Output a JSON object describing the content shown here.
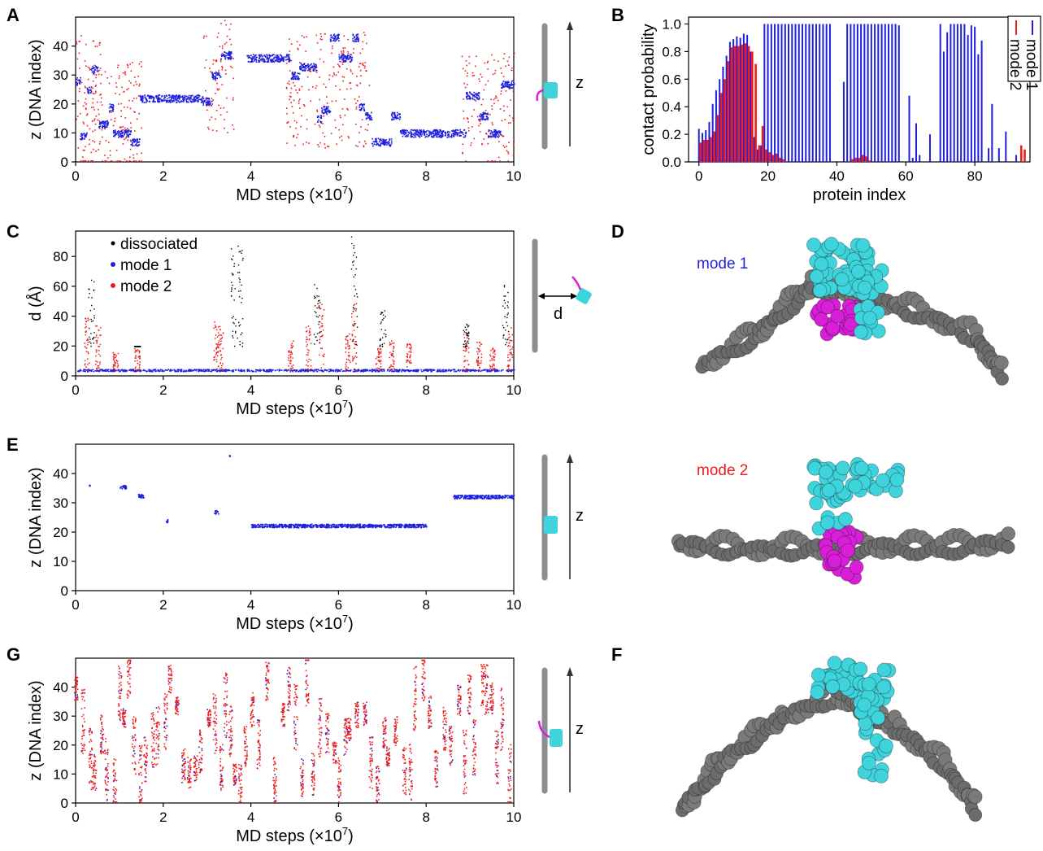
{
  "figure": {
    "panel_labels": {
      "a": "A",
      "b": "B",
      "c": "C",
      "d": "D",
      "e": "E",
      "f": "F",
      "g": "G"
    },
    "colors": {
      "mode1": "#1f1fdc",
      "mode2": "#ee1c1c",
      "dissociated": "#000000",
      "dna": "#7a7a7a",
      "protein": "#3fd3dc",
      "tail": "#d81fd8"
    },
    "schematic_labels": {
      "z": "z",
      "d": "d"
    },
    "structure_labels": {
      "mode1": "mode 1",
      "mode2": "mode 2"
    }
  },
  "chart_data": [
    {
      "id": "A",
      "type": "scatter",
      "xlabel": "MD steps (×10",
      "xlabel_exp": "7",
      "xlabel_end": ")",
      "ylabel": "z (DNA index)",
      "xlim": [
        0,
        10
      ],
      "ylim": [
        0,
        50
      ],
      "xticks": [
        "0",
        "2",
        "4",
        "6",
        "8",
        "10"
      ],
      "yticks": [
        "0",
        "10",
        "20",
        "30",
        "40"
      ],
      "series": [
        {
          "key": "mode1",
          "segments": [
            [
              0,
              0.1,
              28
            ],
            [
              0.1,
              0.25,
              9
            ],
            [
              0.25,
              0.35,
              25
            ],
            [
              0.35,
              0.5,
              32
            ],
            [
              0.5,
              0.75,
              13
            ],
            [
              0.75,
              0.85,
              19
            ],
            [
              0.85,
              1.25,
              10
            ],
            [
              1.25,
              1.45,
              7
            ],
            [
              1.45,
              2.9,
              22
            ],
            [
              2.9,
              3.1,
              21
            ],
            [
              3.1,
              3.3,
              30
            ],
            [
              3.3,
              3.55,
              37
            ],
            [
              3.9,
              4.9,
              36
            ],
            [
              4.9,
              5.1,
              30
            ],
            [
              5.1,
              5.5,
              33
            ],
            [
              5.5,
              5.6,
              15
            ],
            [
              5.6,
              5.8,
              18
            ],
            [
              5.8,
              6.0,
              43
            ],
            [
              6.0,
              6.3,
              36
            ],
            [
              6.3,
              6.45,
              43
            ],
            [
              6.45,
              6.6,
              19
            ],
            [
              6.6,
              6.75,
              16
            ],
            [
              6.75,
              7.2,
              7
            ],
            [
              7.2,
              7.4,
              16
            ],
            [
              7.4,
              8.9,
              10
            ],
            [
              8.9,
              9.2,
              23
            ],
            [
              9.2,
              9.4,
              16
            ],
            [
              9.4,
              9.7,
              10
            ],
            [
              9.7,
              10,
              27
            ]
          ]
        },
        {
          "key": "mode2",
          "segments": [
            [
              0,
              0.6,
              25
            ],
            [
              0.1,
              1.5,
              15
            ],
            [
              2.9,
              3.6,
              30
            ],
            [
              4.8,
              6.7,
              25
            ],
            [
              8.8,
              10,
              18
            ]
          ]
        }
      ]
    },
    {
      "id": "B",
      "type": "bar",
      "xlabel": "protein index",
      "ylabel": "contact probability",
      "xlim": [
        -3,
        96
      ],
      "ylim": [
        0,
        1.05
      ],
      "xticks": [
        "0",
        "20",
        "40",
        "60",
        "80"
      ],
      "yticks": [
        "0.0",
        "0.2",
        "0.4",
        "0.6",
        "0.8",
        "1.0"
      ],
      "series": [
        {
          "name": "mode 1",
          "key": "mode1",
          "values": [
            0.24,
            0.21,
            0.23,
            0.29,
            0.42,
            0.52,
            0.6,
            0.69,
            0.77,
            0.87,
            0.89,
            0.91,
            0.9,
            0.93,
            0.92,
            0.8,
            0.18,
            0.09,
            0.12,
            1.0,
            1.0,
            1.0,
            1.0,
            1.0,
            1.0,
            1.0,
            1.0,
            1.0,
            1.0,
            1.0,
            1.0,
            1.0,
            1.0,
            1.0,
            1.0,
            1.0,
            1.0,
            1.0,
            1.0,
            0.0,
            0.0,
            0.0,
            0.58,
            1.0,
            1.0,
            1.0,
            1.0,
            1.0,
            1.0,
            1.0,
            1.0,
            1.0,
            1.0,
            1.0,
            1.0,
            1.0,
            1.0,
            1.0,
            0.99,
            0.0,
            0.0,
            0.48,
            0.03,
            0.28,
            0.05,
            0.0,
            0.0,
            0.2,
            0.0,
            0.0,
            1.0,
            0.8,
            0.94,
            1.0,
            1.0,
            1.0,
            1.0,
            1.0,
            0.92,
            0.99,
            0.98,
            0.78,
            0.88,
            0.0,
            0.1,
            0.42,
            0.0,
            0.1,
            0.0,
            0.22,
            0.0,
            0.0,
            0.05,
            0.0,
            0.0
          ]
        },
        {
          "name": "mode 2",
          "key": "mode2",
          "values": [
            0.14,
            0.16,
            0.16,
            0.18,
            0.22,
            0.34,
            0.5,
            0.6,
            0.73,
            0.83,
            0.84,
            0.84,
            0.85,
            0.86,
            0.84,
            0.8,
            0.71,
            0.12,
            0.26,
            0.09,
            0.07,
            0.05,
            0.06,
            0.03,
            0.02,
            0.0,
            0.0,
            0.0,
            0.0,
            0.0,
            0.0,
            0.0,
            0.0,
            0.0,
            0.0,
            0.0,
            0.0,
            0.0,
            0.0,
            0.0,
            0.0,
            0.0,
            0.0,
            0.0,
            0.02,
            0.03,
            0.03,
            0.05,
            0.04,
            0.01,
            0.0,
            0.0,
            0.0,
            0.0,
            0.0,
            0.0,
            0.0,
            0.0,
            0.0,
            0.0,
            0.0,
            0.0,
            0.0,
            0.0,
            0.0,
            0.0,
            0.0,
            0.0,
            0.0,
            0.0,
            0.0,
            0.0,
            0.0,
            0.0,
            0.0,
            0.0,
            0.0,
            0.0,
            0.0,
            0.0,
            0.0,
            0.0,
            0.0,
            0.0,
            0.0,
            0.0,
            0.0,
            0.0,
            0.0,
            0.0,
            0.0,
            0.0,
            0.0,
            0.12,
            0.09
          ]
        }
      ]
    },
    {
      "id": "C",
      "type": "scatter",
      "xlabel": "MD steps (×10",
      "xlabel_exp": "7",
      "xlabel_end": ")",
      "ylabel": "d (Å)",
      "xlim": [
        0,
        10
      ],
      "ylim": [
        0,
        97
      ],
      "xticks": [
        "0",
        "2",
        "4",
        "6",
        "8",
        "10"
      ],
      "yticks": [
        "0",
        "20",
        "40",
        "60",
        "80"
      ],
      "series": [
        {
          "name": "dissociated",
          "key": "dissociated",
          "spikes": [
            [
              0.35,
              65
            ],
            [
              3.6,
              92
            ],
            [
              3.75,
              88
            ],
            [
              5.5,
              63
            ],
            [
              6.35,
              96
            ],
            [
              7.0,
              45
            ],
            [
              9.8,
              65
            ],
            [
              1.4,
              20
            ],
            [
              8.9,
              35
            ]
          ]
        },
        {
          "name": "mode 1",
          "key": "mode1",
          "baseline": 4
        },
        {
          "name": "mode 2",
          "key": "mode2",
          "spikes": [
            [
              0.25,
              35
            ],
            [
              0.5,
              30
            ],
            [
              0.9,
              12
            ],
            [
              1.4,
              15
            ],
            [
              3.2,
              35
            ],
            [
              3.3,
              30
            ],
            [
              4.9,
              20
            ],
            [
              5.3,
              30
            ],
            [
              5.6,
              45
            ],
            [
              6.2,
              25
            ],
            [
              6.35,
              45
            ],
            [
              6.9,
              15
            ],
            [
              7.2,
              20
            ],
            [
              7.6,
              18
            ],
            [
              8.9,
              25
            ],
            [
              9.2,
              20
            ],
            [
              9.5,
              15
            ],
            [
              9.9,
              30
            ]
          ]
        }
      ]
    },
    {
      "id": "E",
      "type": "scatter",
      "xlabel": "MD steps (×10",
      "xlabel_exp": "7",
      "xlabel_end": ")",
      "ylabel": "z (DNA index)",
      "xlim": [
        0,
        10
      ],
      "ylim": [
        0,
        50
      ],
      "xticks": [
        "0",
        "2",
        "4",
        "6",
        "8",
        "10"
      ],
      "yticks": [
        "0",
        "10",
        "20",
        "30",
        "40"
      ],
      "series": [
        {
          "key": "mode1",
          "segments": [
            [
              4.0,
              8.0,
              22.3
            ],
            [
              8.6,
              10,
              32.2
            ],
            [
              1.0,
              1.15,
              35.5
            ],
            [
              1.4,
              1.55,
              32.5
            ],
            [
              3.15,
              3.25,
              27
            ],
            [
              2.05,
              2.1,
              24
            ],
            [
              0.3,
              0.32,
              36.5
            ],
            [
              3.5,
              3.52,
              46
            ]
          ]
        }
      ]
    },
    {
      "id": "G",
      "type": "scatter",
      "xlabel": "MD steps (×10",
      "xlabel_exp": "7",
      "xlabel_end": ")",
      "ylabel": "z (DNA index)",
      "xlim": [
        0,
        10
      ],
      "ylim": [
        0,
        50
      ],
      "xticks": [
        "0",
        "2",
        "4",
        "6",
        "8",
        "10"
      ],
      "yticks": [
        "0",
        "10",
        "20",
        "30",
        "40"
      ],
      "series": [
        {
          "key": "mode2",
          "random": true
        },
        {
          "key": "mode1",
          "random": true
        }
      ]
    }
  ]
}
